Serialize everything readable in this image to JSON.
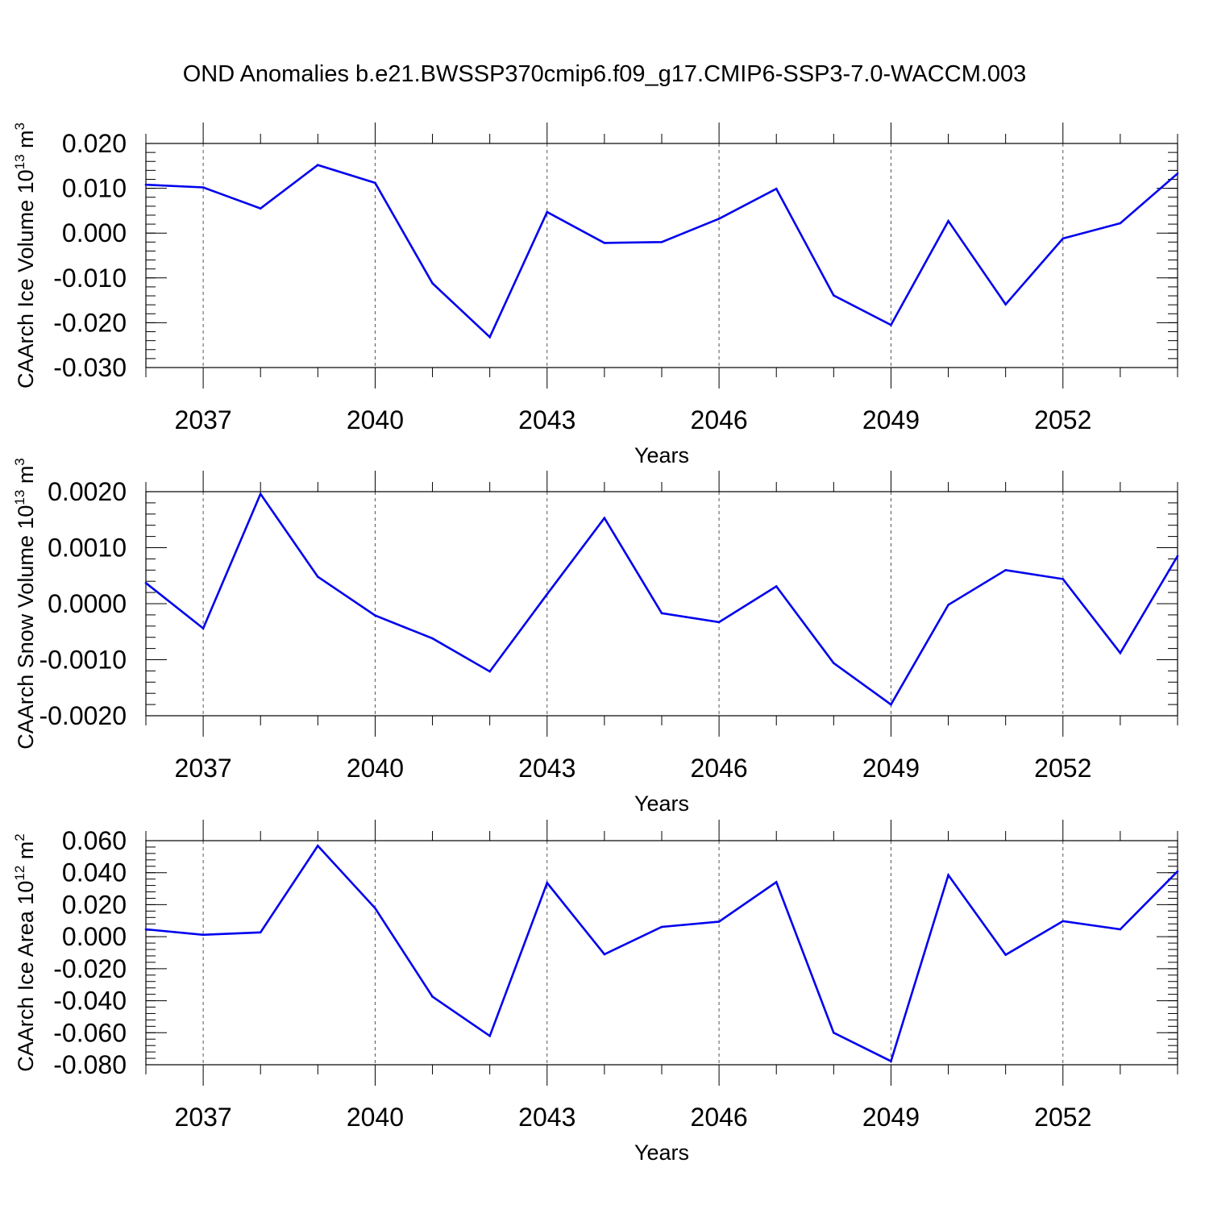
{
  "title": "OND Anomalies b.e21.BWSSP370cmip6.f09_g17.CMIP6-SSP3-7.0-WACCM.003",
  "chart_data": [
    {
      "type": "line",
      "xlabel": "Years",
      "ylabel": "CAArch Ice Volume 10",
      "ylabel_exp": "13",
      "ylabel_unit": " m",
      "ylabel_unit_exp": "3",
      "xlim": [
        2036,
        2054
      ],
      "ylim": [
        -0.03,
        0.02
      ],
      "yticks": [
        -0.03,
        -0.02,
        -0.01,
        0.0,
        0.01,
        0.02
      ],
      "ytick_labels": [
        "-0.030",
        "-0.020",
        "-0.010",
        "0.000",
        "0.010",
        "0.020"
      ],
      "yminor_step": 0.002,
      "xticks": [
        2037,
        2040,
        2043,
        2046,
        2049,
        2052
      ],
      "xtick_labels": [
        "2037",
        "2040",
        "2043",
        "2046",
        "2049",
        "2052"
      ],
      "x": [
        2036,
        2037,
        2038,
        2039,
        2040,
        2041,
        2042,
        2043,
        2044,
        2045,
        2046,
        2047,
        2048,
        2049,
        2050,
        2051,
        2052,
        2053,
        2054
      ],
      "series": [
        {
          "color": "#0000ee",
          "values": [
            0.0108,
            0.0102,
            0.0055,
            0.0152,
            0.0112,
            -0.0112,
            -0.0232,
            0.0047,
            -0.0022,
            -0.002,
            0.0032,
            0.0099,
            -0.0139,
            -0.0205,
            0.0027,
            -0.0159,
            -0.0012,
            0.0022,
            0.0133
          ]
        }
      ],
      "grid": "vertical dashed at major ticks"
    },
    {
      "type": "line",
      "xlabel": "Years",
      "ylabel": "CAArch Snow Volume 10",
      "ylabel_exp": "13",
      "ylabel_unit": " m",
      "ylabel_unit_exp": "3",
      "xlim": [
        2036,
        2054
      ],
      "ylim": [
        -0.002,
        0.002
      ],
      "yticks": [
        -0.002,
        -0.001,
        0.0,
        0.001,
        0.002
      ],
      "ytick_labels": [
        "-0.0020",
        "-0.0010",
        "0.0000",
        "0.0010",
        "0.0020"
      ],
      "yminor_step": 0.0002,
      "xticks": [
        2037,
        2040,
        2043,
        2046,
        2049,
        2052
      ],
      "xtick_labels": [
        "2037",
        "2040",
        "2043",
        "2046",
        "2049",
        "2052"
      ],
      "x": [
        2036,
        2037,
        2038,
        2039,
        2040,
        2041,
        2042,
        2043,
        2044,
        2045,
        2046,
        2047,
        2048,
        2049,
        2050,
        2051,
        2052,
        2053,
        2054
      ],
      "series": [
        {
          "color": "#0000ee",
          "values": [
            0.00037,
            -0.00044,
            0.00196,
            0.00048,
            -0.00021,
            -0.00062,
            -0.00121,
            0.00017,
            0.00153,
            -0.00017,
            -0.00033,
            0.00031,
            -0.00106,
            -0.0018,
            -2e-05,
            0.0006,
            0.00044,
            -0.00088,
            0.00085
          ]
        }
      ],
      "grid": "vertical dashed at major ticks"
    },
    {
      "type": "line",
      "xlabel": "Years",
      "ylabel": "CAArch Ice Area 10",
      "ylabel_exp": "12",
      "ylabel_unit": " m",
      "ylabel_unit_exp": "2",
      "xlim": [
        2036,
        2054
      ],
      "ylim": [
        -0.08,
        0.06
      ],
      "yticks": [
        -0.08,
        -0.06,
        -0.04,
        -0.02,
        0.0,
        0.02,
        0.04,
        0.06
      ],
      "ytick_labels": [
        "-0.080",
        "-0.060",
        "-0.040",
        "-0.020",
        "0.000",
        "0.020",
        "0.040",
        "0.060"
      ],
      "yminor_step": 0.004,
      "xticks": [
        2037,
        2040,
        2043,
        2046,
        2049,
        2052
      ],
      "xtick_labels": [
        "2037",
        "2040",
        "2043",
        "2046",
        "2049",
        "2052"
      ],
      "x": [
        2036,
        2037,
        2038,
        2039,
        2040,
        2041,
        2042,
        2043,
        2044,
        2045,
        2046,
        2047,
        2048,
        2049,
        2050,
        2051,
        2052,
        2053,
        2054
      ],
      "series": [
        {
          "color": "#0000ee",
          "values": [
            0.0046,
            0.0012,
            0.0027,
            0.0568,
            0.0178,
            -0.0375,
            -0.062,
            0.0336,
            -0.011,
            0.0061,
            0.0094,
            0.0341,
            -0.06,
            -0.0778,
            0.0385,
            -0.0113,
            0.0097,
            0.0046,
            0.0408
          ]
        }
      ],
      "grid": "vertical dashed at major ticks"
    }
  ]
}
